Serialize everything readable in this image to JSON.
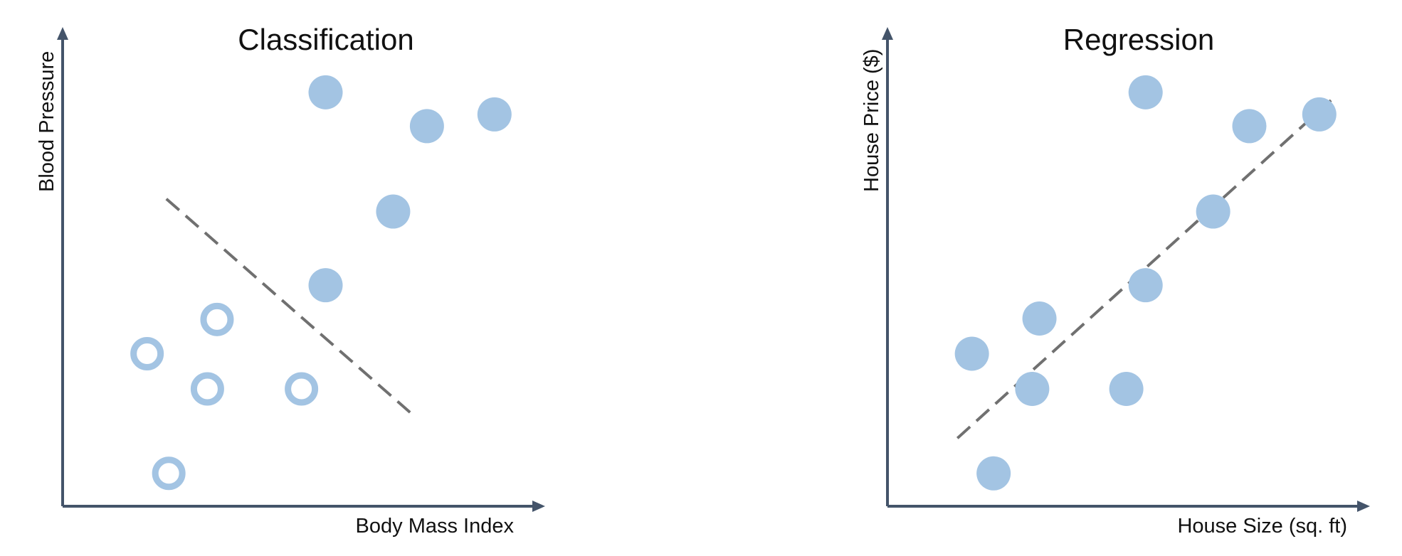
{
  "colors": {
    "point": "#a3c4e3",
    "axis": "#44546a",
    "dashed_line": "#707070",
    "text": "#111111"
  },
  "chart_data": [
    {
      "type": "scatter",
      "title": "Classification",
      "xlabel": "Body Mass Index",
      "ylabel": "Blood Pressure",
      "xlim": [
        0,
        100
      ],
      "ylim": [
        0,
        100
      ],
      "series": [
        {
          "style": "filled",
          "x": [
            54.5,
            75.5,
            89.5,
            68.5,
            54.5
          ],
          "y": [
            88.2,
            81.0,
            83.5,
            62.8,
            47.1
          ]
        },
        {
          "style": "hollow",
          "x": [
            32.0,
            17.5,
            30.0,
            49.5,
            22.0
          ],
          "y": [
            39.8,
            32.5,
            25.0,
            25.0,
            7.0
          ]
        }
      ],
      "annotations": [
        {
          "type": "dashed-line",
          "name": "decision boundary",
          "x": [
            21.5,
            72.0
          ],
          "y": [
            65.5,
            20.0
          ]
        }
      ]
    },
    {
      "type": "scatter",
      "title": "Regression",
      "xlabel": "House Size (sq. ft)",
      "ylabel": "House Price ($)",
      "xlim": [
        0,
        100
      ],
      "ylim": [
        0,
        100
      ],
      "series": [
        {
          "style": "filled",
          "x": [
            53.5,
            75.0,
            89.5,
            67.5,
            53.5,
            31.5,
            17.5,
            30.0,
            49.5,
            22.0
          ],
          "y": [
            88.2,
            81.0,
            83.5,
            62.8,
            47.1,
            40.0,
            32.5,
            25.0,
            25.0,
            7.0
          ]
        }
      ],
      "annotations": [
        {
          "type": "dashed-line",
          "name": "trend line",
          "x": [
            14.5,
            93.0
          ],
          "y": [
            14.5,
            87.5
          ]
        }
      ]
    }
  ]
}
